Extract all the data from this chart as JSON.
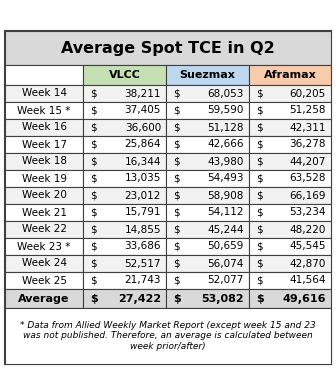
{
  "title": "Average Spot TCE in Q2",
  "columns": [
    "",
    "VLCC",
    "Suezmax",
    "Aframax"
  ],
  "col_header_colors": [
    "#ffffff",
    "#c6e0b4",
    "#bdd7ee",
    "#f8cbad"
  ],
  "rows": [
    [
      "Week 14",
      38211,
      68053,
      60205
    ],
    [
      "Week 15 *",
      37405,
      59590,
      51258
    ],
    [
      "Week 16",
      36600,
      51128,
      42311
    ],
    [
      "Week 17",
      25864,
      42666,
      36278
    ],
    [
      "Week 18",
      16344,
      43980,
      44207
    ],
    [
      "Week 19",
      13035,
      54493,
      63528
    ],
    [
      "Week 20",
      23012,
      58908,
      66169
    ],
    [
      "Week 21",
      15791,
      54112,
      53234
    ],
    [
      "Week 22",
      14855,
      45244,
      48220
    ],
    [
      "Week 23 *",
      33686,
      50659,
      45545
    ],
    [
      "Week 24",
      52517,
      56074,
      42870
    ],
    [
      "Week 25",
      21743,
      52077,
      41564
    ]
  ],
  "average_row": [
    "Average",
    27422,
    53082,
    49616
  ],
  "footer_text": "* Data from Allied Weekly Market Report (except week 15 and 23\nwas not published. Therefore, an average is calculated between\nweek prior/after)",
  "title_bg_color": "#d9d9d9",
  "row_even_color": "#f2f2f2",
  "row_odd_color": "#ffffff",
  "avg_row_color": "#d9d9d9",
  "border_color": "#404040",
  "title_fontsize": 11.5,
  "header_fontsize": 8,
  "cell_fontsize": 7.5,
  "avg_fontsize": 8,
  "footer_fontsize": 6.5
}
